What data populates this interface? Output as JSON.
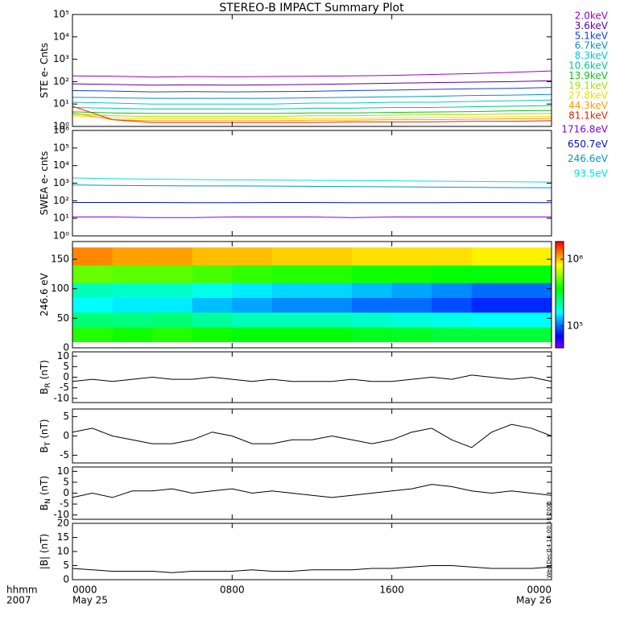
{
  "title": "STEREO-B IMPACT Summary Plot",
  "x_axis": {
    "xlim": [
      0,
      24
    ],
    "xticks": [
      {
        "value": 0,
        "label": "0000"
      },
      {
        "value": 8,
        "label": "0800"
      },
      {
        "value": 16,
        "label": "1600"
      },
      {
        "value": 24,
        "label": "0000"
      }
    ],
    "date_labels": [
      "May 25",
      null,
      null,
      "May 26"
    ],
    "unit_label": "hhmm",
    "year_label": "2007"
  },
  "timestamp": "Wed Dec 14 14:00:16 2005",
  "chart_data": [
    {
      "type": "line",
      "ylabel": "STE e- Cnts",
      "log": true,
      "ylim": [
        1,
        100000
      ],
      "yticks": [
        {
          "value": 1,
          "label": "10⁰"
        },
        {
          "value": 10,
          "label": "10¹"
        },
        {
          "value": 100,
          "label": "10²"
        },
        {
          "value": 1000,
          "label": "10³"
        },
        {
          "value": 10000,
          "label": "10⁴"
        },
        {
          "value": 100000,
          "label": "10⁵"
        }
      ],
      "x": [
        0,
        2,
        4,
        6,
        8,
        10,
        12,
        14,
        16,
        18,
        20,
        22,
        24
      ],
      "series": [
        {
          "name": "2.0keV",
          "color": "#9a00d0",
          "values": [
            180,
            175,
            160,
            170,
            165,
            170,
            175,
            180,
            190,
            210,
            230,
            260,
            300
          ]
        },
        {
          "name": "3.6keV",
          "color": "#5a00b0",
          "values": [
            80,
            75,
            70,
            72,
            70,
            72,
            75,
            80,
            85,
            90,
            95,
            100,
            110
          ]
        },
        {
          "name": "5.1keV",
          "color": "#1040e0",
          "values": [
            40,
            38,
            35,
            36,
            35,
            36,
            37,
            40,
            42,
            45,
            48,
            50,
            55
          ]
        },
        {
          "name": "6.7keV",
          "color": "#0090e0",
          "values": [
            20,
            19,
            18,
            18,
            18,
            18,
            19,
            20,
            21,
            22,
            24,
            25,
            27
          ]
        },
        {
          "name": "8.3keV",
          "color": "#00c8d0",
          "values": [
            12,
            11,
            10,
            10,
            10,
            10,
            11,
            11,
            12,
            12,
            13,
            14,
            15
          ]
        },
        {
          "name": "10.6keV",
          "color": "#00c890",
          "values": [
            7,
            6.5,
            6,
            6,
            6,
            6,
            6.5,
            6.5,
            7,
            7,
            7.5,
            8,
            8.5
          ]
        },
        {
          "name": "13.9keV",
          "color": "#10c010",
          "values": [
            4.5,
            4,
            3.8,
            3.8,
            3.8,
            3.8,
            4,
            4,
            4.2,
            4.4,
            4.6,
            5,
            5.2
          ]
        },
        {
          "name": "19.1keV",
          "color": "#a8e000",
          "values": [
            3.5,
            3,
            2.8,
            2.8,
            2.8,
            2.8,
            3,
            3,
            3.2,
            3.3,
            3.4,
            3.6,
            3.8
          ]
        },
        {
          "name": "27.8keV",
          "color": "#f0e000",
          "values": [
            3,
            2.4,
            2.2,
            2.2,
            2.2,
            2.2,
            2.3,
            2.3,
            2.4,
            2.5,
            2.6,
            2.7,
            2.8
          ]
        },
        {
          "name": "44.3keV",
          "color": "#ff9c00",
          "values": [
            4,
            2,
            1.8,
            1.8,
            1.8,
            1.8,
            1.9,
            1.9,
            2,
            2,
            2.1,
            2.2,
            2.3
          ]
        },
        {
          "name": "81.1keV",
          "color": "#f02000",
          "values": [
            8,
            2,
            1.5,
            1.5,
            1.5,
            1.5,
            1.5,
            1.6,
            1.6,
            1.6,
            1.7,
            1.7,
            1.8
          ]
        }
      ]
    },
    {
      "type": "line",
      "ylabel": "SWEA e- cnts",
      "log": true,
      "ylim": [
        1,
        1000000
      ],
      "yticks": [
        {
          "value": 1,
          "label": "10⁰"
        },
        {
          "value": 10,
          "label": "10¹"
        },
        {
          "value": 100,
          "label": "10²"
        },
        {
          "value": 1000,
          "label": "10³"
        },
        {
          "value": 10000,
          "label": "10⁴"
        },
        {
          "value": 100000,
          "label": "10⁵"
        },
        {
          "value": 1000000,
          "label": "10⁶"
        }
      ],
      "x": [
        0,
        2,
        4,
        6,
        8,
        10,
        12,
        14,
        16,
        18,
        20,
        22,
        24
      ],
      "series": [
        {
          "name": "1716.8eV",
          "color": "#8000f0",
          "values": [
            12,
            12,
            11,
            11,
            12,
            12,
            12,
            11,
            12,
            12,
            12,
            12,
            12
          ]
        },
        {
          "name": "650.7eV",
          "color": "#0010c8",
          "values": [
            80,
            80,
            80,
            78,
            78,
            80,
            80,
            78,
            78,
            78,
            80,
            80,
            78
          ]
        },
        {
          "name": "246.6eV",
          "color": "#0098c0",
          "values": [
            800,
            750,
            720,
            700,
            700,
            680,
            660,
            640,
            620,
            600,
            580,
            560,
            550
          ]
        },
        {
          "name": "93.5eV",
          "color": "#00e0e0",
          "values": [
            2000,
            1800,
            1700,
            1600,
            1550,
            1500,
            1450,
            1400,
            1350,
            1300,
            1250,
            1200,
            1150
          ]
        }
      ]
    },
    {
      "type": "heatmap",
      "ylabel": "246.6 eV",
      "ylim": [
        0,
        180
      ],
      "yticks": [
        0,
        50,
        100,
        150
      ],
      "x_bins": [
        0,
        2,
        4,
        6,
        8,
        10,
        12,
        14,
        16,
        18,
        20,
        22,
        24
      ],
      "y_bins": [
        10,
        35,
        60,
        85,
        110,
        140,
        170
      ],
      "zlim": [
        47000,
        1840000
      ],
      "zticks": [
        {
          "value": 100000,
          "label": "10⁵"
        },
        {
          "value": 1000000,
          "label": "10⁶"
        }
      ],
      "values": [
        [
          400000,
          380000,
          400000,
          380000,
          350000,
          350000,
          350000,
          330000,
          320000,
          300000,
          300000,
          300000
        ],
        [
          250000,
          240000,
          250000,
          220000,
          200000,
          200000,
          200000,
          190000,
          180000,
          170000,
          160000,
          160000
        ],
        [
          160000,
          150000,
          150000,
          130000,
          120000,
          110000,
          110000,
          100000,
          100000,
          90000,
          80000,
          80000
        ],
        [
          200000,
          190000,
          190000,
          170000,
          150000,
          140000,
          140000,
          130000,
          120000,
          110000,
          100000,
          100000
        ],
        [
          500000,
          480000,
          480000,
          450000,
          420000,
          400000,
          400000,
          380000,
          380000,
          360000,
          350000,
          350000
        ],
        [
          1200000,
          1100000,
          1100000,
          1000000,
          1000000,
          950000,
          950000,
          900000,
          900000,
          900000,
          850000,
          850000
        ]
      ]
    },
    {
      "type": "line",
      "ylabel": "B",
      "ylabel_sub": "R",
      "ylabel_unit": "(nT)",
      "ylim": [
        -12,
        12
      ],
      "yticks": [
        -10,
        -5,
        0,
        5,
        10
      ],
      "x": [
        0,
        1,
        2,
        3,
        4,
        5,
        6,
        7,
        8,
        9,
        10,
        11,
        12,
        13,
        14,
        15,
        16,
        17,
        18,
        19,
        20,
        21,
        22,
        23,
        24
      ],
      "series": [
        {
          "color": "#000000",
          "values": [
            -2,
            -1,
            -2,
            -1,
            0,
            -1,
            -1,
            0,
            -1,
            -2,
            -1,
            -2,
            -2,
            -2,
            -1,
            -2,
            -2,
            -1,
            0,
            -1,
            1,
            0,
            -1,
            0,
            -2
          ]
        }
      ]
    },
    {
      "type": "line",
      "ylabel": "B",
      "ylabel_sub": "T",
      "ylabel_unit": "(nT)",
      "ylim": [
        -7,
        7
      ],
      "yticks": [
        -5,
        0,
        5
      ],
      "x": [
        0,
        1,
        2,
        3,
        4,
        5,
        6,
        7,
        8,
        9,
        10,
        11,
        12,
        13,
        14,
        15,
        16,
        17,
        18,
        19,
        20,
        21,
        22,
        23,
        24
      ],
      "series": [
        {
          "color": "#000000",
          "values": [
            1,
            2,
            0,
            -1,
            -2,
            -2,
            -1,
            1,
            0,
            -2,
            -2,
            -1,
            -1,
            0,
            -1,
            -2,
            -1,
            1,
            2,
            -1,
            -3,
            1,
            3,
            2,
            0
          ]
        }
      ]
    },
    {
      "type": "line",
      "ylabel": "B",
      "ylabel_sub": "N",
      "ylabel_unit": "(nT)",
      "ylim": [
        -12,
        12
      ],
      "yticks": [
        -10,
        -5,
        0,
        5,
        10
      ],
      "x": [
        0,
        1,
        2,
        3,
        4,
        5,
        6,
        7,
        8,
        9,
        10,
        11,
        12,
        13,
        14,
        15,
        16,
        17,
        18,
        19,
        20,
        21,
        22,
        23,
        24
      ],
      "series": [
        {
          "color": "#000000",
          "values": [
            -2,
            0,
            -2,
            1,
            1,
            2,
            0,
            1,
            2,
            0,
            1,
            0,
            -1,
            -2,
            -1,
            0,
            1,
            2,
            4,
            3,
            1,
            0,
            1,
            0,
            -1
          ]
        }
      ]
    },
    {
      "type": "line",
      "ylabel": "|B| (nT)",
      "ylim": [
        0,
        20
      ],
      "yticks": [
        0,
        5,
        10,
        15,
        20
      ],
      "x": [
        0,
        1,
        2,
        3,
        4,
        5,
        6,
        7,
        8,
        9,
        10,
        11,
        12,
        13,
        14,
        15,
        16,
        17,
        18,
        19,
        20,
        21,
        22,
        23,
        24
      ],
      "series": [
        {
          "color": "#000000",
          "values": [
            4,
            3.5,
            3,
            3,
            3,
            2.5,
            3,
            3,
            3,
            3.5,
            3,
            3,
            3.5,
            3.5,
            3.5,
            4,
            4,
            4.5,
            5,
            5,
            4.5,
            4,
            4,
            4,
            4.5
          ]
        }
      ]
    }
  ]
}
